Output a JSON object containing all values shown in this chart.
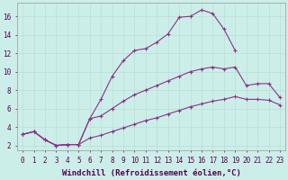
{
  "xlabel": "Windchill (Refroidissement éolien,°C)",
  "bg_color": "#cceee8",
  "grid_color": "#b8ddd8",
  "line_color": "#883388",
  "marker": "+",
  "xlim": [
    -0.5,
    23.5
  ],
  "ylim": [
    1.5,
    17.5
  ],
  "xticks": [
    0,
    1,
    2,
    3,
    4,
    5,
    6,
    7,
    8,
    9,
    10,
    11,
    12,
    13,
    14,
    15,
    16,
    17,
    18,
    19,
    20,
    21,
    22,
    23
  ],
  "yticks": [
    2,
    4,
    6,
    8,
    10,
    12,
    14,
    16
  ],
  "curve1_x": [
    0,
    1,
    2,
    3,
    4,
    5,
    6,
    7,
    8,
    9,
    10,
    11,
    12,
    13,
    14,
    15,
    16,
    17,
    18,
    19,
    20,
    21,
    22,
    23
  ],
  "curve1_y": [
    3.2,
    3.5,
    2.6,
    2.0,
    2.1,
    2.1,
    4.9,
    7.0,
    9.5,
    11.2,
    12.3,
    12.5,
    13.2,
    14.1,
    15.9,
    16.0,
    16.7,
    16.3,
    14.6,
    12.3,
    null,
    null,
    null,
    null
  ],
  "curve2_x": [
    0,
    1,
    2,
    3,
    4,
    5,
    6,
    7,
    8,
    9,
    10,
    11,
    12,
    13,
    14,
    15,
    16,
    17,
    18,
    19,
    20,
    21,
    22,
    23
  ],
  "curve2_y": [
    3.2,
    3.5,
    2.6,
    2.0,
    2.1,
    2.1,
    4.9,
    5.2,
    6.0,
    6.8,
    7.5,
    8.0,
    8.5,
    9.0,
    9.5,
    10.0,
    10.3,
    10.5,
    10.3,
    10.5,
    8.5,
    8.7,
    8.7,
    7.2
  ],
  "curve3_x": [
    0,
    1,
    2,
    3,
    4,
    5,
    6,
    7,
    8,
    9,
    10,
    11,
    12,
    13,
    14,
    15,
    16,
    17,
    18,
    19,
    20,
    21,
    22,
    23
  ],
  "curve3_y": [
    3.2,
    3.5,
    2.6,
    2.0,
    2.1,
    2.1,
    2.8,
    3.1,
    3.5,
    3.9,
    4.3,
    4.7,
    5.0,
    5.4,
    5.8,
    6.2,
    6.5,
    6.8,
    7.0,
    7.3,
    7.0,
    7.0,
    6.9,
    6.4
  ],
  "xlabel_fontsize": 6.5,
  "tick_fontsize": 5.5,
  "linewidth": 0.8,
  "markersize": 3.5
}
